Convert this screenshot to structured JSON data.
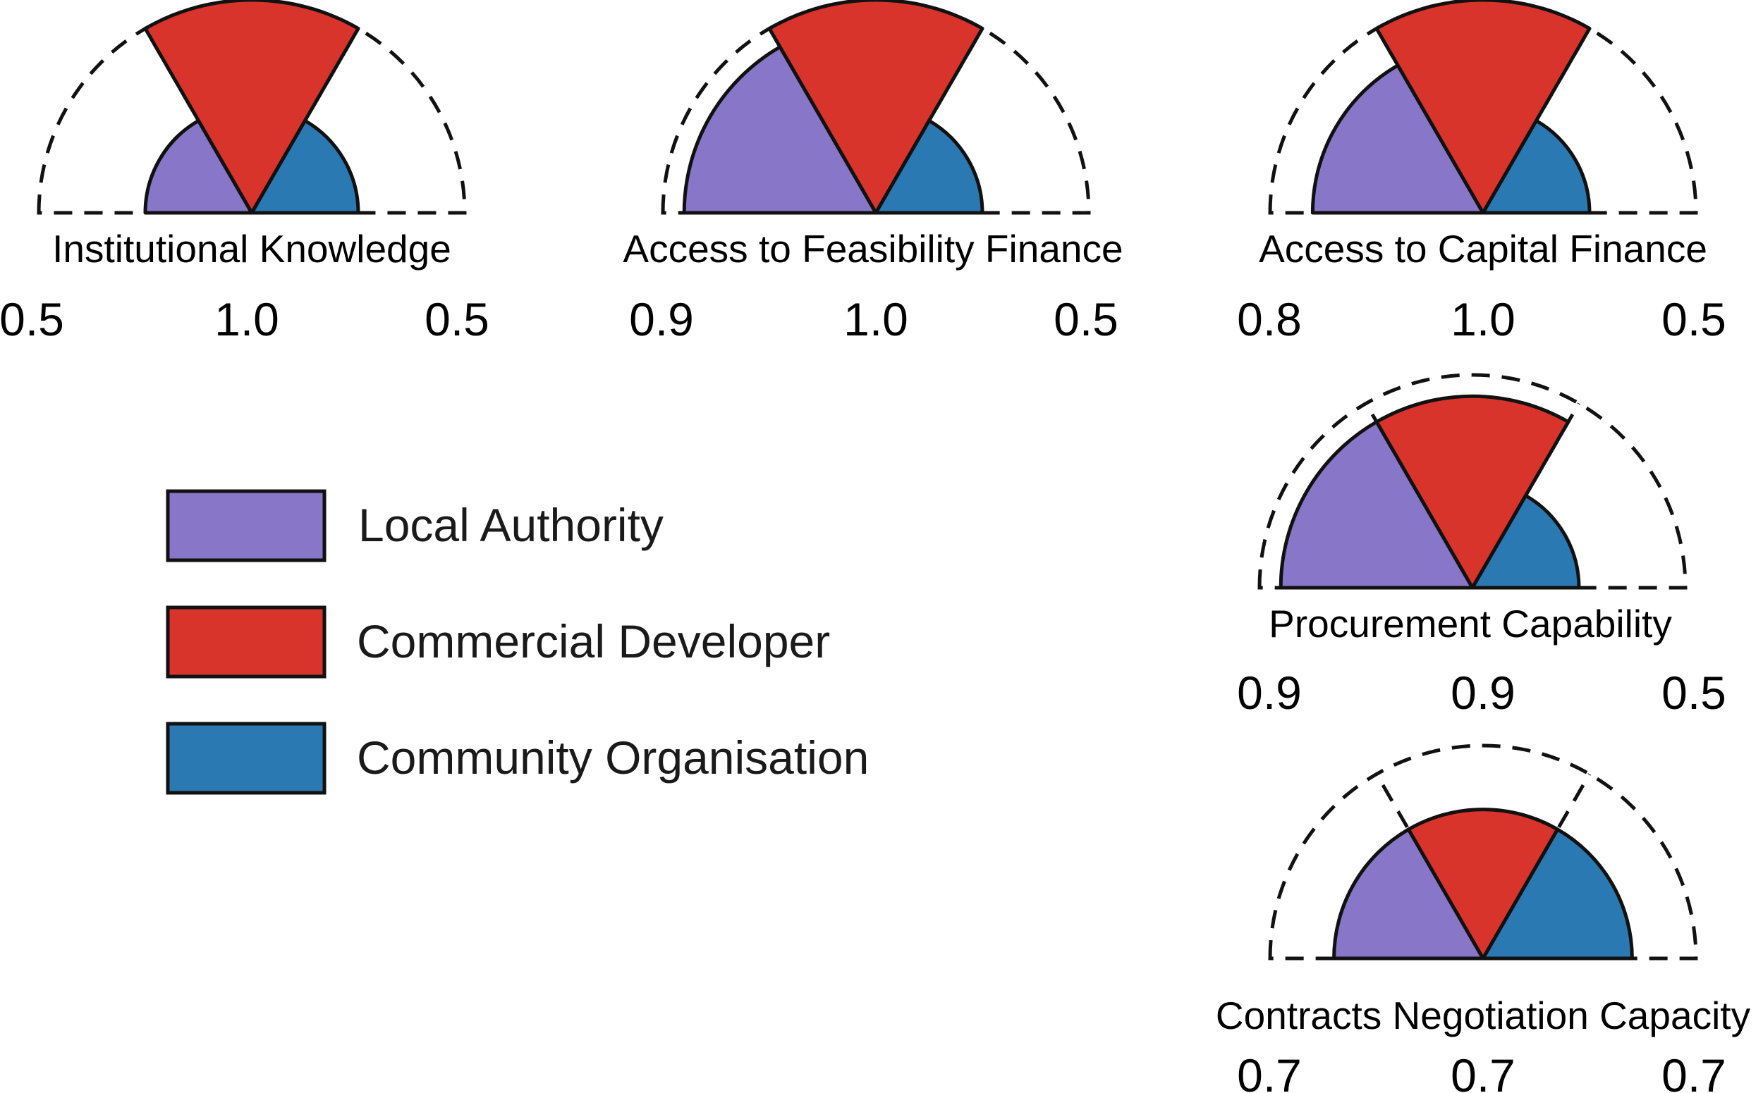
{
  "colors": {
    "local_authority": "#8877c8",
    "commercial_developer": "#d9342b",
    "community_organisation": "#2b79b2",
    "outline": "#111111"
  },
  "legend": {
    "items": [
      {
        "label": "Local Authority",
        "color": "#8877c8"
      },
      {
        "label": "Commercial Developer",
        "color": "#d9342b"
      },
      {
        "label": "Community Organisation",
        "color": "#2b79b2"
      }
    ]
  },
  "chart_data": [
    {
      "type": "gauge",
      "title": "Institutional Knowledge",
      "series": [
        "Local Authority",
        "Commercial Developer",
        "Community Organisation"
      ],
      "values": [
        0.5,
        1.0,
        0.5
      ],
      "value_labels": [
        "0.5",
        "1.0",
        "0.5"
      ],
      "range": [
        0,
        1
      ]
    },
    {
      "type": "gauge",
      "title": "Access to Feasibility Finance",
      "series": [
        "Local Authority",
        "Commercial Developer",
        "Community Organisation"
      ],
      "values": [
        0.9,
        1.0,
        0.5
      ],
      "value_labels": [
        "0.9",
        "1.0",
        "0.5"
      ],
      "range": [
        0,
        1
      ]
    },
    {
      "type": "gauge",
      "title": "Access to Capital Finance",
      "series": [
        "Local Authority",
        "Commercial Developer",
        "Community Organisation"
      ],
      "values": [
        0.8,
        1.0,
        0.5
      ],
      "value_labels": [
        "0.8",
        "1.0",
        "0.5"
      ],
      "range": [
        0,
        1
      ]
    },
    {
      "type": "gauge",
      "title": "Procurement Capability",
      "series": [
        "Local Authority",
        "Commercial Developer",
        "Community Organisation"
      ],
      "values": [
        0.9,
        0.9,
        0.5
      ],
      "value_labels": [
        "0.9",
        "0.9",
        "0.5"
      ],
      "range": [
        0,
        1
      ]
    },
    {
      "type": "gauge",
      "title": "Contracts Negotiation Capacity",
      "series": [
        "Local Authority",
        "Commercial Developer",
        "Community Organisation"
      ],
      "values": [
        0.7,
        0.7,
        0.7
      ],
      "value_labels": [
        "0.7",
        "0.7",
        "0.7"
      ],
      "range": [
        0,
        1
      ]
    }
  ]
}
